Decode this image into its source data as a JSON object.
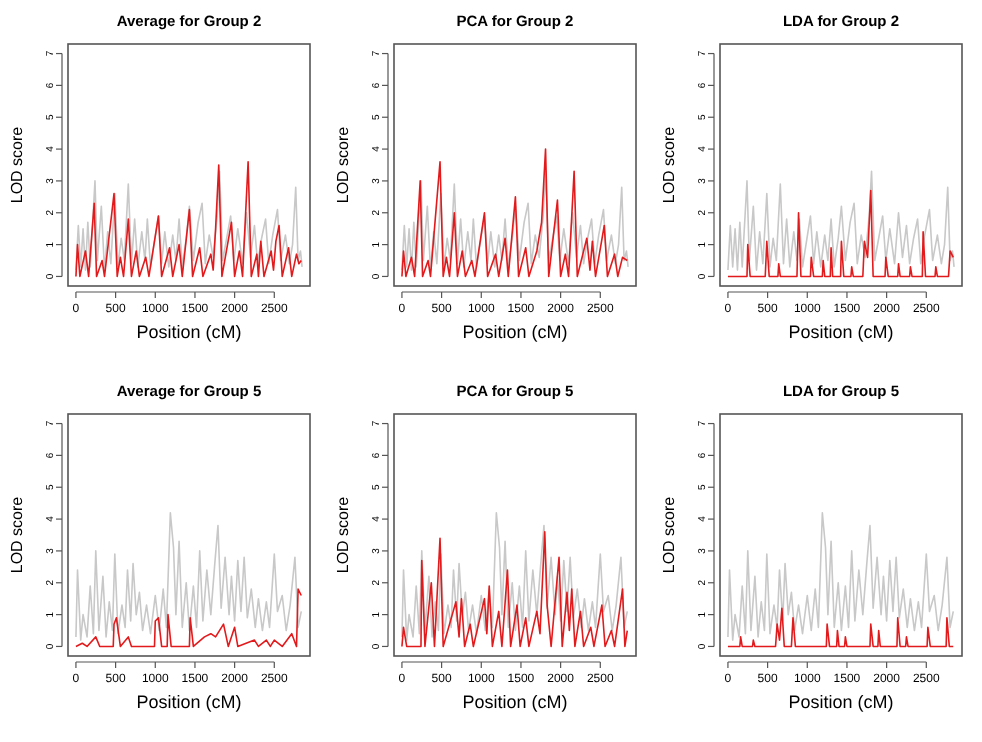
{
  "chart_data": [
    {
      "type": "line",
      "title": "Average for Group 2",
      "xlabel": "Position (cM)",
      "ylabel": "LOD score",
      "xlim": [
        -100,
        2950
      ],
      "ylim": [
        -0.3,
        7.3
      ],
      "xticks": [
        0,
        500,
        1000,
        1500,
        2000,
        2500
      ],
      "yticks": [
        0,
        1,
        2,
        3,
        4,
        5,
        6,
        7
      ],
      "series": [
        {
          "color": "#c8c8c8",
          "x": [
            0,
            30,
            60,
            90,
            120,
            150,
            180,
            240,
            270,
            320,
            360,
            400,
            440,
            490,
            530,
            570,
            610,
            660,
            700,
            740,
            780,
            830,
            870,
            900,
            940,
            990,
            1040,
            1080,
            1120,
            1170,
            1220,
            1260,
            1300,
            1340,
            1390,
            1430,
            1480,
            1540,
            1590,
            1630,
            1680,
            1730,
            1780,
            1810,
            1850,
            1900,
            1950,
            1990,
            2040,
            2100,
            2150,
            2200,
            2250,
            2290,
            2340,
            2390,
            2430,
            2480,
            2540,
            2580,
            2640,
            2690,
            2730,
            2770,
            2800,
            2830,
            2850
          ],
          "values": [
            0.2,
            1.6,
            0.3,
            1.5,
            0.2,
            1.7,
            0.3,
            3.0,
            0.5,
            2.2,
            0.2,
            1.4,
            0.4,
            2.6,
            0.3,
            1.2,
            0.5,
            2.9,
            0.4,
            1.8,
            0.3,
            1.4,
            0.5,
            1.8,
            0.3,
            1.1,
            1.9,
            0.4,
            1.4,
            0.3,
            1.3,
            0.5,
            1.8,
            0.3,
            1.2,
            2.2,
            0.5,
            1.7,
            2.3,
            0.4,
            1.3,
            0.6,
            1.9,
            3.3,
            0.5,
            1.2,
            1.9,
            0.5,
            1.5,
            0.4,
            2.0,
            0.6,
            1.6,
            0.4,
            1.2,
            1.8,
            0.4,
            1.3,
            2.1,
            0.5,
            1.3,
            0.4,
            1.0,
            2.8,
            0.5,
            0.8,
            0.3
          ]
        },
        {
          "color": "#e31a1c",
          "x": [
            0,
            20,
            50,
            120,
            160,
            230,
            260,
            330,
            360,
            480,
            520,
            560,
            600,
            660,
            700,
            760,
            800,
            880,
            920,
            1040,
            1080,
            1180,
            1220,
            1300,
            1340,
            1430,
            1470,
            1560,
            1600,
            1700,
            1730,
            1760,
            1800,
            1840,
            1960,
            2000,
            2060,
            2100,
            2170,
            2210,
            2280,
            2300,
            2330,
            2370,
            2460,
            2490,
            2520,
            2560,
            2600,
            2680,
            2720,
            2780,
            2810,
            2840
          ],
          "values": [
            0,
            1.0,
            0,
            0.8,
            0,
            2.3,
            0,
            0.5,
            0,
            2.6,
            0,
            0.6,
            0,
            1.8,
            0,
            0.8,
            0,
            0.6,
            0,
            1.9,
            0,
            0.9,
            0,
            1.0,
            0,
            2.1,
            0,
            0.9,
            0,
            0.7,
            0.2,
            1.5,
            3.5,
            0,
            1.7,
            0,
            0.8,
            0,
            3.6,
            0,
            0.7,
            0,
            1.1,
            0,
            0.8,
            0.2,
            1.1,
            1.6,
            0,
            0.9,
            0,
            0.7,
            0.4,
            0.5
          ]
        }
      ]
    },
    {
      "type": "line",
      "title": "PCA for Group 2",
      "xlabel": "Position (cM)",
      "ylabel": "LOD score",
      "xlim": [
        -100,
        2950
      ],
      "ylim": [
        -0.3,
        7.3
      ],
      "xticks": [
        0,
        500,
        1000,
        1500,
        2000,
        2500
      ],
      "yticks": [
        0,
        1,
        2,
        3,
        4,
        5,
        6,
        7
      ],
      "series": [
        {
          "color": "#c8c8c8",
          "x": [
            0,
            30,
            60,
            90,
            120,
            150,
            180,
            240,
            270,
            320,
            360,
            400,
            440,
            490,
            530,
            570,
            610,
            660,
            700,
            740,
            780,
            830,
            870,
            900,
            940,
            990,
            1040,
            1080,
            1120,
            1170,
            1220,
            1260,
            1300,
            1340,
            1390,
            1430,
            1480,
            1540,
            1590,
            1630,
            1680,
            1730,
            1780,
            1810,
            1850,
            1900,
            1950,
            1990,
            2040,
            2100,
            2150,
            2200,
            2250,
            2290,
            2340,
            2390,
            2430,
            2480,
            2540,
            2580,
            2640,
            2690,
            2730,
            2770,
            2800,
            2830,
            2850
          ],
          "values": [
            0.2,
            1.6,
            0.3,
            1.5,
            0.2,
            1.7,
            0.3,
            3.0,
            0.5,
            2.2,
            0.2,
            1.4,
            0.4,
            2.6,
            0.3,
            1.2,
            0.5,
            2.9,
            0.4,
            1.8,
            0.3,
            1.4,
            0.5,
            1.8,
            0.3,
            1.1,
            1.9,
            0.4,
            1.4,
            0.3,
            1.3,
            0.5,
            1.8,
            0.3,
            1.2,
            2.2,
            0.5,
            1.7,
            2.3,
            0.4,
            1.3,
            0.6,
            1.9,
            3.3,
            0.5,
            1.2,
            1.9,
            0.5,
            1.5,
            0.4,
            2.0,
            0.6,
            1.6,
            0.4,
            1.2,
            1.8,
            0.4,
            1.3,
            2.1,
            0.5,
            1.3,
            0.4,
            1.0,
            2.8,
            0.5,
            0.8,
            0.3
          ]
        },
        {
          "color": "#e31a1c",
          "x": [
            0,
            20,
            50,
            120,
            160,
            230,
            260,
            330,
            360,
            480,
            520,
            560,
            600,
            660,
            700,
            760,
            800,
            880,
            920,
            1040,
            1080,
            1180,
            1220,
            1300,
            1340,
            1430,
            1470,
            1560,
            1600,
            1700,
            1760,
            1810,
            1850,
            1960,
            2000,
            2060,
            2100,
            2170,
            2210,
            2330,
            2370,
            2400,
            2440,
            2550,
            2590,
            2680,
            2720,
            2780,
            2840
          ],
          "values": [
            0,
            0.8,
            0,
            0.6,
            0,
            3.0,
            0,
            0.5,
            0,
            3.6,
            0,
            0.6,
            0,
            2.0,
            0,
            0.8,
            0,
            0.5,
            0,
            2.0,
            0,
            0.7,
            0,
            1.2,
            0,
            2.5,
            0,
            0.9,
            0,
            0.8,
            1.7,
            4.0,
            0,
            2.4,
            0,
            0.7,
            0,
            3.3,
            0,
            1.2,
            0.2,
            1.1,
            0,
            1.6,
            0,
            0.7,
            0,
            0.6,
            0.5
          ]
        }
      ]
    },
    {
      "type": "line",
      "title": "LDA for Group 2",
      "xlabel": "Position (cM)",
      "ylabel": "LOD score",
      "xlim": [
        -100,
        2950
      ],
      "ylim": [
        -0.3,
        7.3
      ],
      "xticks": [
        0,
        500,
        1000,
        1500,
        2000,
        2500
      ],
      "yticks": [
        0,
        1,
        2,
        3,
        4,
        5,
        6,
        7
      ],
      "series": [
        {
          "color": "#c8c8c8",
          "x": [
            0,
            30,
            60,
            90,
            120,
            150,
            180,
            240,
            270,
            320,
            360,
            400,
            440,
            490,
            530,
            570,
            610,
            660,
            700,
            740,
            780,
            830,
            870,
            900,
            940,
            990,
            1040,
            1080,
            1120,
            1170,
            1220,
            1260,
            1300,
            1340,
            1390,
            1430,
            1480,
            1540,
            1590,
            1630,
            1680,
            1730,
            1780,
            1810,
            1850,
            1900,
            1950,
            1990,
            2040,
            2100,
            2150,
            2200,
            2250,
            2290,
            2340,
            2390,
            2430,
            2480,
            2540,
            2580,
            2640,
            2690,
            2730,
            2770,
            2800,
            2830,
            2850
          ],
          "values": [
            0.2,
            1.6,
            0.3,
            1.5,
            0.2,
            1.7,
            0.3,
            3.0,
            0.5,
            2.2,
            0.2,
            1.4,
            0.4,
            2.6,
            0.3,
            1.2,
            0.5,
            2.9,
            0.4,
            1.8,
            0.3,
            1.4,
            0.5,
            1.8,
            0.3,
            1.1,
            1.9,
            0.4,
            1.4,
            0.3,
            1.3,
            0.5,
            1.8,
            0.3,
            1.2,
            2.2,
            0.5,
            1.7,
            2.3,
            0.4,
            1.3,
            0.6,
            1.9,
            3.3,
            0.5,
            1.2,
            1.9,
            0.5,
            1.5,
            0.4,
            2.0,
            0.6,
            1.6,
            0.4,
            1.2,
            1.8,
            0.4,
            1.3,
            2.1,
            0.5,
            1.3,
            0.4,
            1.0,
            2.8,
            0.5,
            0.8,
            0.3
          ]
        },
        {
          "color": "#e31a1c",
          "x": [
            0,
            240,
            250,
            280,
            470,
            490,
            520,
            630,
            640,
            660,
            870,
            890,
            920,
            1040,
            1050,
            1080,
            1190,
            1200,
            1220,
            1290,
            1300,
            1320,
            1420,
            1430,
            1460,
            1550,
            1560,
            1580,
            1700,
            1720,
            1760,
            1800,
            1830,
            1980,
            1990,
            2020,
            2140,
            2150,
            2170,
            2290,
            2300,
            2320,
            2450,
            2460,
            2490,
            2610,
            2620,
            2640,
            2780,
            2800,
            2840
          ],
          "values": [
            0,
            0,
            1.0,
            0,
            0,
            1.1,
            0,
            0,
            0.4,
            0,
            0,
            2.0,
            0,
            0,
            0.6,
            0,
            0,
            0.5,
            0,
            0,
            0.9,
            0,
            0,
            1.1,
            0,
            0,
            0.3,
            0,
            0,
            1.1,
            0.6,
            2.7,
            0,
            0,
            0.6,
            0,
            0,
            0.4,
            0,
            0,
            0.3,
            0,
            0,
            1.4,
            0,
            0,
            0.3,
            0,
            0,
            0.8,
            0.6
          ]
        }
      ]
    },
    {
      "type": "line",
      "title": "Average for Group 5",
      "xlabel": "Position (cM)",
      "ylabel": "LOD score",
      "xlim": [
        -100,
        2950
      ],
      "ylim": [
        -0.3,
        7.3
      ],
      "xticks": [
        0,
        500,
        1000,
        1500,
        2000,
        2500
      ],
      "yticks": [
        0,
        1,
        2,
        3,
        4,
        5,
        6,
        7
      ],
      "series": [
        {
          "color": "#c8c8c8",
          "x": [
            0,
            20,
            60,
            90,
            140,
            180,
            220,
            250,
            290,
            340,
            380,
            420,
            460,
            490,
            530,
            580,
            620,
            650,
            690,
            720,
            760,
            800,
            840,
            890,
            940,
            1000,
            1050,
            1100,
            1140,
            1190,
            1230,
            1260,
            1300,
            1340,
            1390,
            1430,
            1480,
            1520,
            1560,
            1600,
            1650,
            1700,
            1750,
            1790,
            1830,
            1880,
            1930,
            1960,
            2000,
            2040,
            2080,
            2120,
            2160,
            2210,
            2260,
            2300,
            2350,
            2400,
            2440,
            2500,
            2540,
            2600,
            2650,
            2700,
            2760,
            2800,
            2840
          ],
          "values": [
            0.3,
            2.4,
            0.2,
            1.0,
            0.3,
            1.9,
            0.4,
            3.0,
            0.5,
            2.2,
            0.3,
            1.4,
            0.5,
            2.9,
            0.4,
            1.3,
            0.6,
            2.4,
            0.8,
            2.6,
            1.0,
            1.7,
            0.5,
            1.3,
            0.4,
            1.6,
            0.5,
            1.8,
            0.6,
            4.2,
            3.1,
            1.0,
            3.3,
            0.6,
            2.0,
            0.5,
            1.9,
            0.6,
            3.0,
            0.8,
            2.4,
            1.0,
            2.6,
            3.8,
            1.2,
            2.8,
            1.0,
            2.2,
            0.8,
            2.7,
            1.1,
            2.8,
            0.9,
            1.8,
            0.6,
            1.5,
            0.5,
            1.4,
            0.6,
            2.9,
            1.1,
            1.6,
            0.5,
            1.3,
            2.8,
            0.6,
            1.1
          ]
        },
        {
          "color": "#e31a1c",
          "x": [
            0,
            80,
            140,
            250,
            300,
            470,
            480,
            510,
            560,
            660,
            700,
            990,
            1000,
            1040,
            1080,
            1150,
            1160,
            1200,
            1430,
            1440,
            1480,
            1620,
            1700,
            1760,
            1860,
            1920,
            2000,
            2040,
            2250,
            2300,
            2400,
            2450,
            2500,
            2600,
            2720,
            2780,
            2800,
            2840
          ],
          "values": [
            0,
            0.1,
            0,
            0.3,
            0,
            0,
            0.7,
            0.9,
            0,
            0.3,
            0,
            0,
            0.8,
            0.9,
            0,
            0,
            1.0,
            0,
            0,
            0.9,
            0,
            0.3,
            0.4,
            0.3,
            0.7,
            0,
            0.6,
            0,
            0.2,
            0,
            0.2,
            0,
            0.2,
            0,
            0.4,
            0,
            1.8,
            1.6
          ]
        }
      ]
    },
    {
      "type": "line",
      "title": "PCA for Group 5",
      "xlabel": "Position (cM)",
      "ylabel": "LOD score",
      "xlim": [
        -100,
        2950
      ],
      "ylim": [
        -0.3,
        7.3
      ],
      "xticks": [
        0,
        500,
        1000,
        1500,
        2000,
        2500
      ],
      "yticks": [
        0,
        1,
        2,
        3,
        4,
        5,
        6,
        7
      ],
      "series": [
        {
          "color": "#c8c8c8",
          "x": [
            0,
            20,
            60,
            90,
            140,
            180,
            220,
            250,
            290,
            340,
            380,
            420,
            460,
            490,
            530,
            580,
            620,
            650,
            690,
            720,
            760,
            800,
            840,
            890,
            940,
            1000,
            1050,
            1100,
            1140,
            1190,
            1230,
            1260,
            1300,
            1340,
            1390,
            1430,
            1480,
            1520,
            1560,
            1600,
            1650,
            1700,
            1750,
            1790,
            1830,
            1880,
            1930,
            1960,
            2000,
            2040,
            2080,
            2120,
            2160,
            2210,
            2260,
            2300,
            2350,
            2400,
            2440,
            2500,
            2540,
            2600,
            2650,
            2700,
            2760,
            2800,
            2840
          ],
          "values": [
            0.3,
            2.4,
            0.2,
            1.0,
            0.3,
            1.9,
            0.4,
            3.0,
            0.5,
            2.2,
            0.3,
            1.4,
            0.5,
            2.9,
            0.4,
            1.3,
            0.6,
            2.4,
            0.8,
            2.6,
            1.0,
            1.7,
            0.5,
            1.3,
            0.4,
            1.6,
            0.5,
            1.8,
            0.6,
            4.2,
            3.1,
            1.0,
            3.3,
            0.6,
            2.0,
            0.5,
            1.9,
            0.6,
            3.0,
            0.8,
            2.4,
            1.0,
            2.6,
            3.8,
            1.2,
            2.8,
            1.0,
            2.2,
            0.8,
            2.7,
            1.1,
            2.8,
            0.9,
            1.8,
            0.6,
            1.5,
            0.5,
            1.4,
            0.6,
            2.9,
            1.1,
            1.6,
            0.5,
            1.3,
            2.8,
            0.6,
            1.1
          ]
        },
        {
          "color": "#e31a1c",
          "x": [
            0,
            20,
            60,
            240,
            250,
            290,
            370,
            410,
            480,
            520,
            680,
            720,
            750,
            790,
            860,
            900,
            1040,
            1070,
            1100,
            1140,
            1220,
            1260,
            1330,
            1370,
            1450,
            1490,
            1560,
            1600,
            1700,
            1740,
            1800,
            1830,
            1880,
            1980,
            2020,
            2080,
            2110,
            2140,
            2180,
            2250,
            2290,
            2380,
            2420,
            2520,
            2560,
            2640,
            2680,
            2780,
            2810,
            2840
          ],
          "values": [
            0,
            0.6,
            0,
            0,
            2.7,
            0,
            2.0,
            0,
            3.4,
            0,
            1.4,
            0.3,
            1.5,
            0,
            0.7,
            0,
            1.5,
            0.4,
            1.9,
            0,
            1.1,
            0,
            2.4,
            0,
            1.3,
            0,
            0.9,
            0,
            1.1,
            0.4,
            3.6,
            1.3,
            0,
            2.8,
            0,
            1.7,
            0.5,
            1.8,
            0,
            1.1,
            0,
            0.6,
            0,
            1.3,
            0,
            0.5,
            0,
            1.8,
            0,
            0.5
          ]
        }
      ]
    },
    {
      "type": "line",
      "title": "LDA for Group 5",
      "xlabel": "Position (cM)",
      "ylabel": "LOD score",
      "xlim": [
        -100,
        2950
      ],
      "ylim": [
        -0.3,
        7.3
      ],
      "xticks": [
        0,
        500,
        1000,
        1500,
        2000,
        2500
      ],
      "yticks": [
        0,
        1,
        2,
        3,
        4,
        5,
        6,
        7
      ],
      "series": [
        {
          "color": "#c8c8c8",
          "x": [
            0,
            20,
            60,
            90,
            140,
            180,
            220,
            250,
            290,
            340,
            380,
            420,
            460,
            490,
            530,
            580,
            620,
            650,
            690,
            720,
            760,
            800,
            840,
            890,
            940,
            1000,
            1050,
            1100,
            1140,
            1190,
            1230,
            1260,
            1300,
            1340,
            1390,
            1430,
            1480,
            1520,
            1560,
            1600,
            1650,
            1700,
            1750,
            1790,
            1830,
            1880,
            1930,
            1960,
            2000,
            2040,
            2080,
            2120,
            2160,
            2210,
            2260,
            2300,
            2350,
            2400,
            2440,
            2500,
            2540,
            2600,
            2650,
            2700,
            2760,
            2800,
            2840
          ],
          "values": [
            0.3,
            2.4,
            0.2,
            1.0,
            0.3,
            1.9,
            0.4,
            3.0,
            0.5,
            2.2,
            0.3,
            1.4,
            0.5,
            2.9,
            0.4,
            1.3,
            0.6,
            2.4,
            0.8,
            2.6,
            1.0,
            1.7,
            0.5,
            1.3,
            0.4,
            1.6,
            0.5,
            1.8,
            0.6,
            4.2,
            3.1,
            1.0,
            3.3,
            0.6,
            2.0,
            0.5,
            1.9,
            0.6,
            3.0,
            0.8,
            2.4,
            1.0,
            2.6,
            3.8,
            1.2,
            2.8,
            1.0,
            2.2,
            0.8,
            2.7,
            1.1,
            2.8,
            0.9,
            1.8,
            0.6,
            1.5,
            0.5,
            1.4,
            0.6,
            2.9,
            1.1,
            1.6,
            0.5,
            1.3,
            2.8,
            0.6,
            1.1
          ]
        },
        {
          "color": "#e31a1c",
          "x": [
            0,
            150,
            160,
            180,
            310,
            320,
            340,
            600,
            620,
            650,
            680,
            710,
            800,
            820,
            850,
            1240,
            1250,
            1280,
            1370,
            1380,
            1400,
            1470,
            1480,
            1500,
            1790,
            1800,
            1830,
            1890,
            1900,
            1920,
            2130,
            2140,
            2170,
            2240,
            2250,
            2270,
            2510,
            2520,
            2550,
            2750,
            2760,
            2790,
            2840
          ],
          "values": [
            0,
            0,
            0.3,
            0,
            0,
            0.2,
            0,
            0,
            0.7,
            0.2,
            1.2,
            0,
            0,
            0.9,
            0,
            0,
            0.7,
            0,
            0,
            0.5,
            0,
            0,
            0.3,
            0,
            0,
            0.7,
            0,
            0,
            0.5,
            0,
            0,
            0.9,
            0,
            0,
            0.3,
            0,
            0,
            0.6,
            0,
            0,
            0.9,
            0,
            0
          ]
        }
      ]
    }
  ]
}
